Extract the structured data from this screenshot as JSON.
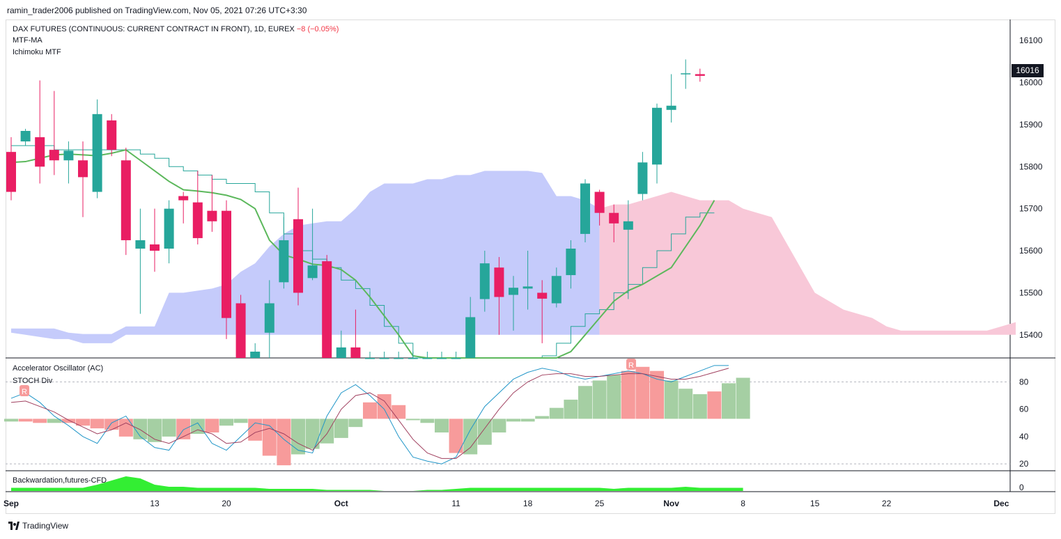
{
  "publisher": "ramin_trader2006 published on TradingView.com, Nov 05, 2021 07:26 UTC+3:30",
  "legend": {
    "symbol": "DAX FUTURES (CONTINUOUS: CURRENT CONTRACT IN FRONT), 1D, EUREX",
    "change": "−8 (−0.05%)",
    "ind1": "MTF-MA",
    "ind2": "Ichimoku MTF"
  },
  "osc_legend": {
    "ac": "Accelerator Oscillator (AC)",
    "stoch": "STOCH Div"
  },
  "bottom_legend": "Backwardation,futures-CFD",
  "last_price": "16016",
  "footer": "TradingView",
  "colors": {
    "up": "#26a69a",
    "down": "#e91e63",
    "ma": "#5cb85c",
    "cloud_bull": "#c5cbfb",
    "cloud_bear": "#f8c8d8",
    "ac_up": "#a5cfa3",
    "ac_down": "#f79b9b",
    "stoch_k": "#2196c8",
    "stoch_d": "#a0405f",
    "backwardation": "#33ee33"
  },
  "chart_data": {
    "type": "candlestick",
    "price_axis": {
      "ticks": [
        "16100",
        "16000",
        "15900",
        "15800",
        "15700",
        "15600",
        "15500",
        "15400"
      ],
      "range": [
        15345,
        16150
      ]
    },
    "osc_axis": {
      "ticks": [
        "80",
        "60",
        "40",
        "20"
      ],
      "range": [
        15,
        97
      ]
    },
    "bottom_axis": {
      "ticks": [
        "0"
      ]
    },
    "x_labels": [
      "Sep",
      "13",
      "20",
      "Oct",
      "11",
      "18",
      "25",
      "Nov",
      "8",
      "15",
      "22",
      "Dec"
    ],
    "x_label_index": [
      0,
      10,
      15,
      23,
      31,
      36,
      41,
      46,
      51,
      56,
      61,
      69
    ],
    "candles": [
      [
        15835,
        15870,
        15720,
        15740
      ],
      [
        15860,
        15890,
        15850,
        15885
      ],
      [
        15870,
        16005,
        15760,
        15800
      ],
      [
        15840,
        15980,
        15780,
        15815
      ],
      [
        15815,
        15860,
        15760,
        15838
      ],
      [
        15815,
        15860,
        15680,
        15775
      ],
      [
        15740,
        15960,
        15725,
        15925
      ],
      [
        15910,
        15925,
        15825,
        15840
      ],
      [
        15815,
        15845,
        15590,
        15625
      ],
      [
        15605,
        15700,
        15450,
        15625
      ],
      [
        15615,
        15700,
        15550,
        15600
      ],
      [
        15605,
        15720,
        15570,
        15700
      ],
      [
        15730,
        15740,
        15665,
        15720
      ],
      [
        15715,
        15790,
        15615,
        15630
      ],
      [
        15695,
        15780,
        15645,
        15670
      ],
      [
        15695,
        15720,
        15390,
        15440
      ],
      [
        15475,
        15495,
        15330,
        15330
      ],
      [
        15335,
        15380,
        15300,
        15360
      ],
      [
        15405,
        15530,
        15310,
        15475
      ],
      [
        15525,
        15680,
        15510,
        15625
      ],
      [
        15675,
        15750,
        15470,
        15500
      ],
      [
        15535,
        15700,
        15530,
        15565
      ],
      [
        15575,
        15590,
        15290,
        15305
      ],
      [
        15305,
        15410,
        15250,
        15370
      ],
      [
        15370,
        15460,
        15320,
        15340
      ],
      [
        15338,
        15360,
        15300,
        15340
      ],
      [
        15340,
        15360,
        15300,
        15345
      ],
      [
        15340,
        15360,
        15300,
        15345
      ],
      [
        15340,
        15360,
        15300,
        15345
      ],
      [
        15340,
        15360,
        15300,
        15345
      ],
      [
        15340,
        15360,
        15300,
        15345
      ],
      [
        15345,
        15360,
        15290,
        15345
      ],
      [
        15320,
        15490,
        15300,
        15442
      ],
      [
        15485,
        15600,
        15455,
        15570
      ],
      [
        15560,
        15585,
        15400,
        15490
      ],
      [
        15495,
        15540,
        15410,
        15512
      ],
      [
        15510,
        15600,
        15460,
        15515
      ],
      [
        15500,
        15530,
        15380,
        15486
      ],
      [
        15475,
        15560,
        15465,
        15540
      ],
      [
        15542,
        15625,
        15510,
        15605
      ],
      [
        15640,
        15770,
        15620,
        15760
      ],
      [
        15740,
        15745,
        15660,
        15690
      ],
      [
        15690,
        15710,
        15620,
        15665
      ],
      [
        15650,
        15720,
        15485,
        15670
      ],
      [
        15735,
        15835,
        15720,
        15810
      ],
      [
        15805,
        15950,
        15760,
        15940
      ],
      [
        15935,
        16020,
        15905,
        15945
      ],
      [
        16020,
        16055,
        15985,
        16022
      ],
      [
        16020,
        16033,
        16002,
        16016
      ]
    ],
    "ma_values": [
      15810,
      15812,
      15820,
      15828,
      15830,
      15828,
      15826,
      15832,
      15840,
      15815,
      15790,
      15765,
      15745,
      15742,
      15738,
      15732,
      15722,
      15700,
      15625,
      15590,
      15580,
      15568,
      15565,
      15555,
      15530,
      15490,
      15445,
      15400,
      15350,
      15320,
      15290,
      15265,
      15245,
      15228,
      15220,
      15220,
      15225,
      15260,
      15310,
      15360,
      15400,
      15440,
      15480,
      15505,
      15520,
      15540,
      15560,
      15610,
      15660,
      15720
    ],
    "kijun_values": [
      15850,
      15850,
      15850,
      15840,
      15840,
      15840,
      15840,
      15840,
      15840,
      15830,
      15820,
      15800,
      15790,
      15780,
      15770,
      15760,
      15760,
      15740,
      15690,
      15640,
      15600,
      15580,
      15560,
      15530,
      15510,
      15470,
      15420,
      15380,
      15340,
      15330,
      15320,
      15310,
      15300,
      15300,
      15310,
      15320,
      15330,
      15350,
      15380,
      15420,
      15450,
      15460,
      15500,
      15520,
      15560,
      15600,
      15640,
      15680,
      15690,
      15690
    ],
    "cloud_top": [
      15415,
      15415,
      15415,
      15415,
      15405,
      15402,
      15402,
      15402,
      15420,
      15420,
      15420,
      15500,
      15500,
      15505,
      15510,
      15520,
      15550,
      15570,
      15610,
      15640,
      15660,
      15665,
      15670,
      15670,
      15700,
      15740,
      15760,
      15760,
      15760,
      15770,
      15770,
      15780,
      15780,
      15790,
      15790,
      15790,
      15790,
      15785,
      15730,
      15730,
      15720,
      15700,
      15710,
      15710,
      15720,
      15730,
      15740,
      15730,
      15720,
      15720,
      15720,
      15700,
      15690,
      15680,
      15620,
      15560,
      15500,
      15480,
      15460,
      15450,
      15440,
      15420,
      15410,
      15410,
      15410,
      15410,
      15410,
      15410,
      15410,
      15420,
      15430
    ],
    "cloud_bottom": [
      15405,
      15400,
      15395,
      15390,
      15390,
      15380,
      15380,
      15380,
      15400,
      15400,
      15400,
      15400,
      15400,
      15400,
      15400,
      15400,
      15400,
      15400,
      15400,
      15400,
      15400,
      15400,
      15400,
      15400,
      15400,
      15400,
      15400,
      15400,
      15400,
      15400,
      15400,
      15400,
      15400,
      15400,
      15400,
      15400,
      15400,
      15400,
      15400,
      15400,
      15400,
      15400,
      15400,
      15400,
      15400,
      15400,
      15400,
      15400,
      15400,
      15400,
      15400,
      15400,
      15400,
      15400,
      15400,
      15400,
      15400,
      15400,
      15400,
      15400,
      15400,
      15400,
      15400,
      15400,
      15400,
      15400,
      15400,
      15400,
      15400,
      15400,
      15400
    ],
    "ac_values": [
      -2,
      -2,
      -3,
      -3,
      -3,
      -5,
      -7,
      -8,
      -13,
      -15,
      -17,
      -13,
      -15,
      -11,
      -10,
      -5,
      -3,
      -16,
      -27,
      -34,
      -26,
      -22,
      -18,
      -14,
      -6,
      12,
      18,
      10,
      0,
      -3,
      -10,
      -25,
      -26,
      -19,
      -10,
      -2,
      -2,
      2,
      8,
      14,
      24,
      28,
      32,
      35,
      38,
      35,
      28,
      22,
      18,
      20,
      26,
      30
    ],
    "ac_colors": [
      "u",
      "d",
      "d",
      "u",
      "d",
      "d",
      "d",
      "d",
      "d",
      "u",
      "u",
      "u",
      "d",
      "u",
      "d",
      "u",
      "u",
      "d",
      "d",
      "d",
      "u",
      "u",
      "u",
      "u",
      "u",
      "d",
      "d",
      "d",
      "u",
      "u",
      "u",
      "d",
      "u",
      "u",
      "u",
      "u",
      "u",
      "u",
      "u",
      "u",
      "u",
      "u",
      "u",
      "d",
      "d",
      "d",
      "u",
      "u",
      "u",
      "d",
      "u",
      "u"
    ],
    "stoch_k": [
      68,
      72,
      65,
      55,
      48,
      40,
      35,
      50,
      55,
      40,
      32,
      30,
      45,
      50,
      35,
      30,
      40,
      50,
      48,
      38,
      30,
      28,
      55,
      72,
      78,
      70,
      60,
      40,
      25,
      22,
      20,
      25,
      45,
      62,
      72,
      82,
      87,
      90,
      88,
      84,
      82,
      84,
      86,
      88,
      86,
      82,
      80,
      84,
      88,
      92,
      92
    ],
    "stoch_d": [
      65,
      66,
      62,
      58,
      52,
      47,
      42,
      45,
      50,
      45,
      38,
      35,
      40,
      45,
      42,
      35,
      36,
      43,
      46,
      42,
      35,
      30,
      42,
      60,
      70,
      72,
      66,
      52,
      38,
      28,
      24,
      24,
      32,
      46,
      60,
      72,
      80,
      85,
      86,
      86,
      84,
      84,
      85,
      86,
      86,
      84,
      82,
      82,
      84,
      87,
      90
    ],
    "backwardation": [
      3,
      3,
      3,
      3,
      3,
      3,
      6,
      10,
      14,
      12,
      6,
      4,
      4,
      3,
      3,
      3,
      3,
      3,
      2,
      2,
      2,
      2,
      1,
      1,
      1,
      1,
      0,
      0,
      0,
      1,
      1,
      2,
      3,
      3,
      3,
      3,
      3,
      3,
      3,
      3,
      3,
      3,
      2,
      3,
      3,
      3,
      3,
      4,
      3,
      3,
      3,
      3
    ]
  }
}
